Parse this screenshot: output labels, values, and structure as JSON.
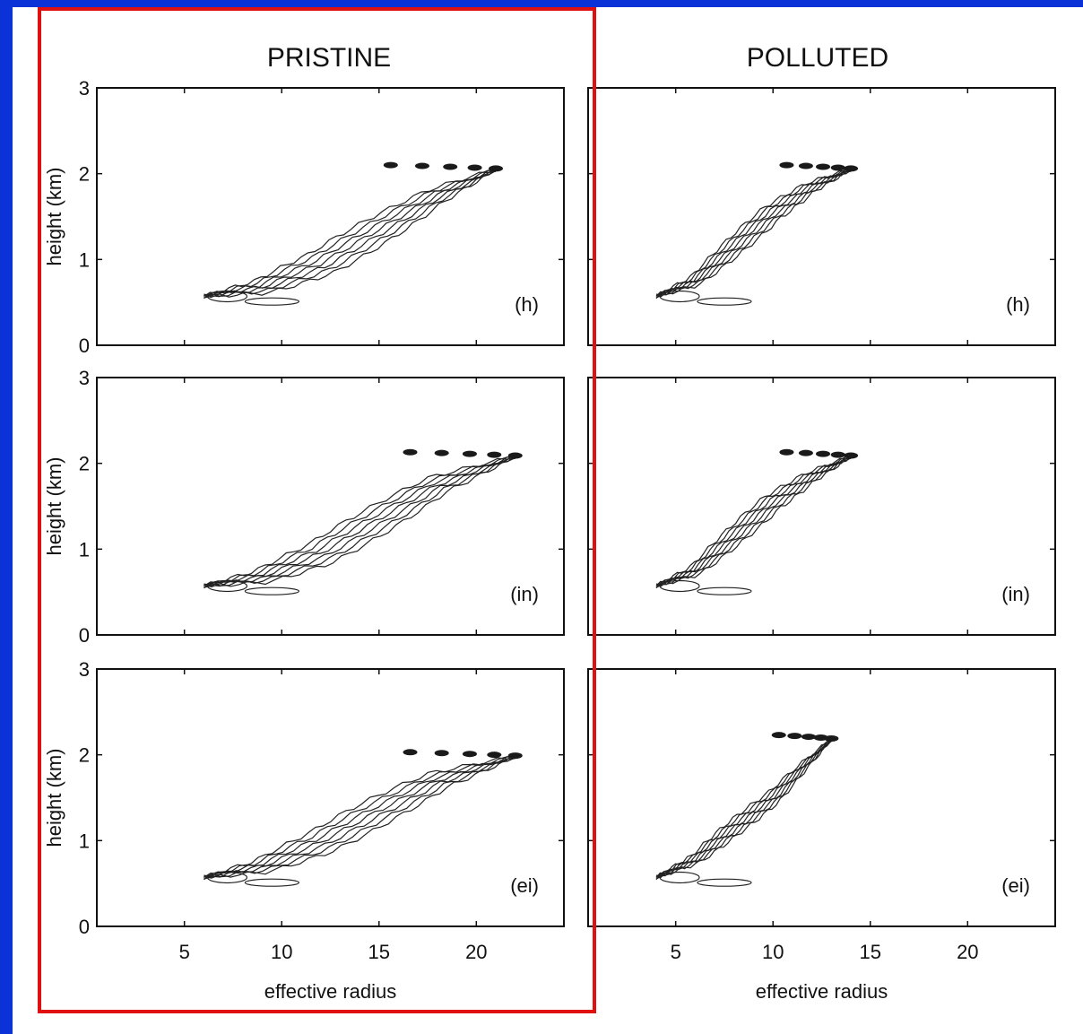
{
  "colors": {
    "frame": "#0a32d6",
    "highlight": "#e01010",
    "lines": "#222222"
  },
  "chart_data": [
    {
      "type": "contour",
      "title": "PRISTINE",
      "panels": [
        {
          "tag": "(h)",
          "ridge": [
            [
              6,
              0.57
            ],
            [
              9,
              0.68
            ],
            [
              12,
              0.95
            ],
            [
              15,
              1.35
            ],
            [
              18,
              1.75
            ],
            [
              21,
              2.05
            ]
          ],
          "spread": 0.9
        },
        {
          "tag": "(in)",
          "ridge": [
            [
              6,
              0.57
            ],
            [
              9,
              0.68
            ],
            [
              12,
              0.95
            ],
            [
              15,
              1.35
            ],
            [
              18,
              1.75
            ],
            [
              22,
              2.08
            ]
          ],
          "spread": 0.9
        },
        {
          "tag": "(ei)",
          "ridge": [
            [
              6,
              0.57
            ],
            [
              9,
              0.7
            ],
            [
              12,
              0.98
            ],
            [
              15,
              1.35
            ],
            [
              18,
              1.7
            ],
            [
              22,
              1.98
            ]
          ],
          "spread": 0.9
        }
      ],
      "xlabel": "effective radius",
      "ylabel": "height  (km)",
      "xticks": [
        5,
        10,
        15,
        20
      ],
      "yticks": [
        0,
        1,
        2,
        3
      ],
      "xlim": [
        0.5,
        24.5
      ],
      "ylim": [
        0,
        3
      ]
    },
    {
      "type": "contour",
      "title": "POLLUTED",
      "panels": [
        {
          "tag": "(h)",
          "ridge": [
            [
              4,
              0.57
            ],
            [
              6,
              0.75
            ],
            [
              8,
              1.15
            ],
            [
              10,
              1.55
            ],
            [
              12,
              1.85
            ],
            [
              14,
              2.05
            ]
          ],
          "spread": 0.55
        },
        {
          "tag": "(in)",
          "ridge": [
            [
              4,
              0.57
            ],
            [
              6,
              0.75
            ],
            [
              8,
              1.15
            ],
            [
              10,
              1.55
            ],
            [
              12,
              1.85
            ],
            [
              14,
              2.08
            ]
          ],
          "spread": 0.55
        },
        {
          "tag": "(ei)",
          "ridge": [
            [
              4,
              0.57
            ],
            [
              6,
              0.78
            ],
            [
              8,
              1.15
            ],
            [
              10,
              1.5
            ],
            [
              11.5,
              1.85
            ],
            [
              13,
              2.18
            ]
          ],
          "spread": 0.45
        }
      ],
      "xlabel": "effective radius",
      "ylabel": "",
      "xticks": [
        5,
        10,
        15,
        20
      ],
      "yticks": [
        0,
        1,
        2,
        3
      ],
      "xlim": [
        0.5,
        24.5
      ],
      "ylim": [
        0,
        3
      ]
    }
  ]
}
